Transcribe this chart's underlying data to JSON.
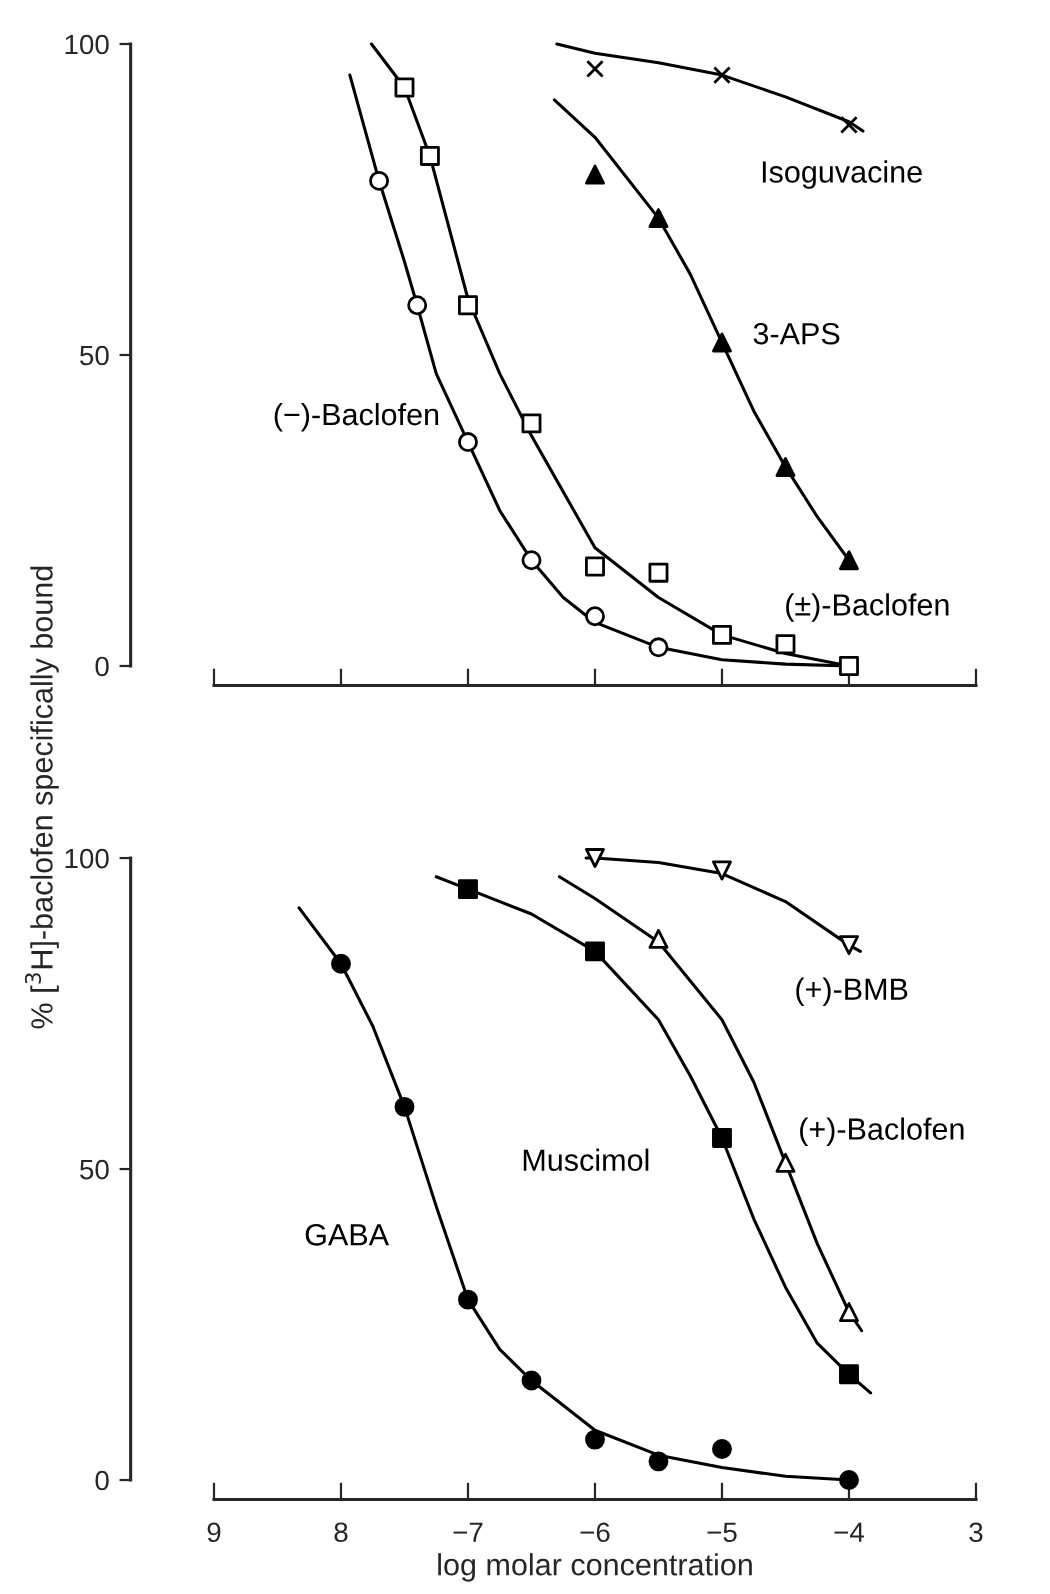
{
  "chart_data": [
    {
      "type": "scatter",
      "xlim": [
        -9,
        -3
      ],
      "ylim": [
        0,
        100
      ],
      "xticks": [
        {
          "value": -9,
          "label": null
        },
        {
          "value": -8,
          "label": null
        },
        {
          "value": -7,
          "label": null
        },
        {
          "value": -6,
          "label": null
        },
        {
          "value": -5,
          "label": null
        },
        {
          "value": -4,
          "label": null
        },
        {
          "value": -3,
          "label": null
        }
      ],
      "yticks": [
        0,
        50,
        100
      ],
      "tick_labels": "y",
      "grid": false,
      "legend": false,
      "series": [
        {
          "name": "(−)-Baclofen",
          "marker": "circle",
          "color": "#000000",
          "x": [
            -7.7,
            -7.4,
            -7.0,
            -6.5,
            -6.0,
            -5.5
          ],
          "values": [
            78,
            58,
            36,
            17,
            8,
            3
          ]
        },
        {
          "type": "line",
          "marker": "none",
          "color": "#000000",
          "x": [
            -7.93,
            -7.7,
            -7.5,
            -7.4,
            -7.25,
            -7.0,
            -6.75,
            -6.5,
            -6.25,
            -6.0,
            -5.5,
            -5.0,
            -4.5,
            -4.0
          ],
          "values": [
            95,
            78,
            65,
            58,
            47,
            36,
            25,
            17,
            11,
            7,
            3,
            1,
            0.3,
            0
          ]
        },
        {
          "name": "(±)-Baclofen",
          "marker": "square",
          "color": "#000000",
          "x": [
            -7.5,
            -7.3,
            -7.0,
            -6.5,
            -6.0,
            -5.5,
            -5.0,
            -4.5,
            -4.0
          ],
          "values": [
            93,
            82,
            58,
            39,
            16,
            15,
            5,
            3.5,
            0
          ]
        },
        {
          "type": "line",
          "marker": "none",
          "color": "#000000",
          "x": [
            -7.76,
            -7.5,
            -7.3,
            -7.0,
            -6.75,
            -6.5,
            -6.0,
            -5.5,
            -5.0,
            -4.5,
            -4.0
          ],
          "values": [
            100,
            93,
            82,
            59,
            47,
            37,
            19,
            11,
            5,
            2,
            0
          ]
        },
        {
          "name": "3-APS",
          "marker": "triangle",
          "color": "#000000",
          "x": [
            -6.0,
            -5.5,
            -5.0,
            -4.5,
            -4.0
          ],
          "values": [
            79,
            72,
            52,
            32,
            17
          ]
        },
        {
          "type": "line",
          "marker": "none",
          "color": "#000000",
          "x": [
            -6.32,
            -6.0,
            -5.5,
            -5.25,
            -5.0,
            -4.75,
            -4.5,
            -4.25,
            -4.0
          ],
          "values": [
            91,
            85,
            72,
            63,
            52,
            41,
            32,
            24,
            17
          ]
        },
        {
          "name": "Isoguvacine",
          "marker": "cross",
          "color": "#000000",
          "x": [
            -6.0,
            -5.0,
            -4.0
          ],
          "values": [
            96,
            95,
            87
          ]
        },
        {
          "type": "line",
          "marker": "none",
          "color": "#000000",
          "x": [
            -6.3,
            -6.0,
            -5.5,
            -5.0,
            -4.5,
            -4.0,
            -3.89
          ],
          "values": [
            100,
            98.5,
            97,
            95,
            91.5,
            87.5,
            86
          ]
        }
      ]
    },
    {
      "type": "scatter",
      "xlim": [
        -9,
        -3
      ],
      "ylim": [
        0,
        100
      ],
      "xticks": [
        {
          "value": -9,
          "label": "9"
        },
        {
          "value": -8,
          "label": "8"
        },
        {
          "value": -7,
          "label": "−7"
        },
        {
          "value": -6,
          "label": "−6"
        },
        {
          "value": -5,
          "label": "−5"
        },
        {
          "value": -4,
          "label": "−4"
        },
        {
          "value": -3,
          "label": "3"
        }
      ],
      "yticks": [
        0,
        50,
        100
      ],
      "grid": false,
      "legend": false,
      "xlabel": "log molar concentration",
      "ylabel": "% [$^{3}$H]-baclofen specifically bound",
      "series": [
        {
          "name": "GABA",
          "marker": "circle",
          "color": "#000000",
          "x": [
            -8.0,
            -7.5,
            -7.0,
            -6.5,
            -6.0,
            -5.5,
            -5.0,
            -4.0
          ],
          "values": [
            83,
            60,
            29,
            16,
            6.5,
            3,
            5,
            0
          ]
        },
        {
          "type": "line",
          "marker": "none",
          "color": "#000000",
          "x": [
            -8.33,
            -8.0,
            -7.75,
            -7.5,
            -7.25,
            -7.0,
            -6.75,
            -6.5,
            -6.0,
            -5.5,
            -5.0,
            -4.5,
            -4.0
          ],
          "values": [
            92,
            83,
            73,
            60,
            44,
            29,
            21,
            16,
            8,
            4,
            2,
            0.6,
            0
          ]
        },
        {
          "name": "Muscimol",
          "marker": "square",
          "color": "#000000",
          "x": [
            -7.0,
            -6.0,
            -5.0,
            -4.0
          ],
          "values": [
            95,
            85,
            55,
            17
          ]
        },
        {
          "type": "line",
          "marker": "none",
          "color": "#000000",
          "x": [
            -7.25,
            -7.0,
            -6.5,
            -6.0,
            -5.5,
            -5.25,
            -5.0,
            -4.75,
            -4.5,
            -4.25,
            -4.0,
            -3.83
          ],
          "values": [
            97,
            95,
            91,
            85,
            74,
            65,
            55,
            42,
            31,
            22,
            17,
            14
          ]
        },
        {
          "name": "(+)-Baclofen",
          "marker": "triangle",
          "color": "#000000",
          "x": [
            -5.5,
            -4.5,
            -4.0
          ],
          "values": [
            87,
            51,
            27
          ]
        },
        {
          "type": "line",
          "marker": "none",
          "color": "#000000",
          "x": [
            -6.28,
            -6.0,
            -5.5,
            -5.0,
            -4.75,
            -4.5,
            -4.25,
            -4.0,
            -3.9
          ],
          "values": [
            97,
            93.5,
            86.5,
            74,
            64,
            51,
            38,
            27,
            24
          ]
        },
        {
          "name": "(+)-BMB",
          "marker": "triangle_down",
          "color": "#000000",
          "x": [
            -6.0,
            -5.0,
            -4.0
          ],
          "values": [
            100,
            98,
            86
          ]
        },
        {
          "type": "line",
          "marker": "none",
          "color": "#000000",
          "x": [
            -6.07,
            -6.0,
            -5.5,
            -5.0,
            -4.5,
            -4.0,
            -3.91
          ],
          "values": [
            100,
            100,
            99.3,
            97.5,
            93,
            86,
            85
          ]
        }
      ]
    }
  ]
}
